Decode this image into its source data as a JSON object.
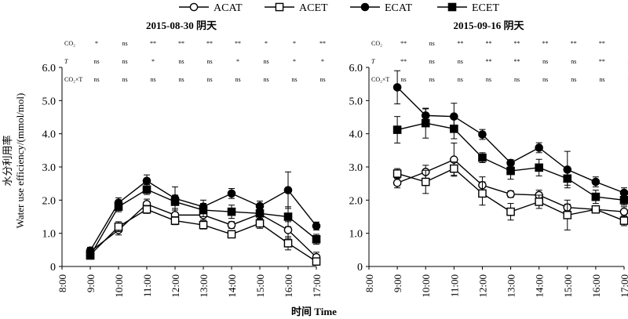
{
  "chart_data": {
    "type": "line",
    "legend": {
      "placement": "top-center",
      "entries": [
        "ACAT",
        "ACET",
        "ECAT",
        "ECET"
      ]
    },
    "ylabel": "水分利用率",
    "ylabel_en": "Water use efficiency/(mmol/mol)",
    "xlabel": "时间 Time",
    "ylim": [
      0,
      6
    ],
    "yticks": [
      "0",
      "1.0",
      "2.0",
      "3.0",
      "4.0",
      "5.0",
      "6.0"
    ],
    "x": [
      "8:00",
      "9:00",
      "10:00",
      "11:00",
      "12:00",
      "13:00",
      "14:00",
      "15:00",
      "16:00",
      "17:00"
    ],
    "significance_rows": [
      "CO2",
      "T",
      "CO2×T"
    ],
    "panels": [
      {
        "title": "2015-08-30    阴天",
        "significance": {
          "CO2": [
            "*",
            "ns",
            "**",
            "**",
            "**",
            "**",
            "*",
            "*",
            "**"
          ],
          "T": [
            "ns",
            "ns",
            "*",
            "ns",
            "ns",
            "*",
            "ns",
            "*",
            "*"
          ],
          "CO2×T": [
            "ns",
            "ns",
            "ns",
            "ns",
            "ns",
            "ns",
            "ns",
            "ns",
            "ns"
          ]
        },
        "series": [
          {
            "name": "ACAT",
            "marker": "open-circle",
            "values": [
              0.45,
              1.1,
              1.88,
              1.55,
              1.55,
              1.25,
              1.58,
              1.1,
              0.28
            ],
            "errors": [
              0.1,
              0.15,
              0.15,
              0.15,
              0.15,
              0.1,
              0.15,
              0.25,
              0.15
            ]
          },
          {
            "name": "ACET",
            "marker": "open-square",
            "values": [
              0.35,
              1.2,
              1.72,
              1.38,
              1.25,
              0.97,
              1.3,
              0.7,
              0.15
            ],
            "errors": [
              0.1,
              0.15,
              0.12,
              0.12,
              0.12,
              0.1,
              0.15,
              0.2,
              0.1
            ]
          },
          {
            "name": "ECAT",
            "marker": "filled-circle",
            "values": [
              0.48,
              1.92,
              2.58,
              2.05,
              1.8,
              2.2,
              1.82,
              2.3,
              1.22
            ],
            "errors": [
              0.1,
              0.15,
              0.18,
              0.35,
              0.2,
              0.15,
              0.15,
              0.55,
              0.12
            ]
          },
          {
            "name": "ECET",
            "marker": "filled-square",
            "values": [
              0.33,
              1.8,
              2.32,
              1.95,
              1.7,
              1.65,
              1.6,
              1.5,
              0.82
            ],
            "errors": [
              0.1,
              0.15,
              0.15,
              0.2,
              0.2,
              0.2,
              0.2,
              0.3,
              0.15
            ]
          }
        ]
      },
      {
        "title": "2015-09-16    阴天",
        "significance": {
          "CO2": [
            "**",
            "ns",
            "**",
            "**",
            "**",
            "**",
            "**",
            "**",
            "*"
          ],
          "T": [
            "**",
            "ns",
            "ns",
            "**",
            "**",
            "ns",
            "ns",
            "**",
            "ns"
          ],
          "CO2×T": [
            "ns",
            "ns",
            "ns",
            "ns",
            "ns",
            "ns",
            "ns",
            "ns",
            "ns"
          ]
        },
        "series": [
          {
            "name": "ACAT",
            "marker": "open-circle",
            "values": [
              2.52,
              2.85,
              3.22,
              2.45,
              2.18,
              2.15,
              1.78,
              1.72,
              1.65
            ],
            "errors": [
              0.15,
              0.2,
              0.5,
              0.25,
              0.1,
              0.15,
              0.1,
              0.1,
              0.15
            ]
          },
          {
            "name": "ACET",
            "marker": "open-square",
            "values": [
              2.8,
              2.55,
              2.95,
              2.2,
              1.65,
              1.95,
              1.55,
              1.72,
              1.38
            ],
            "errors": [
              0.15,
              0.35,
              0.2,
              0.35,
              0.25,
              0.2,
              0.45,
              0.1,
              0.15
            ]
          },
          {
            "name": "ECAT",
            "marker": "filled-circle",
            "values": [
              5.4,
              4.55,
              4.52,
              3.98,
              3.12,
              3.58,
              2.92,
              2.55,
              2.22
            ],
            "errors": [
              0.5,
              0.2,
              0.4,
              0.15,
              0.1,
              0.15,
              0.55,
              0.15,
              0.15
            ]
          },
          {
            "name": "ECET",
            "marker": "filled-square",
            "values": [
              4.12,
              4.32,
              4.15,
              3.28,
              2.88,
              2.98,
              2.65,
              2.1,
              2.0
            ],
            "errors": [
              0.4,
              0.45,
              0.3,
              0.15,
              0.25,
              0.25,
              0.2,
              0.2,
              0.15
            ]
          }
        ]
      }
    ]
  }
}
